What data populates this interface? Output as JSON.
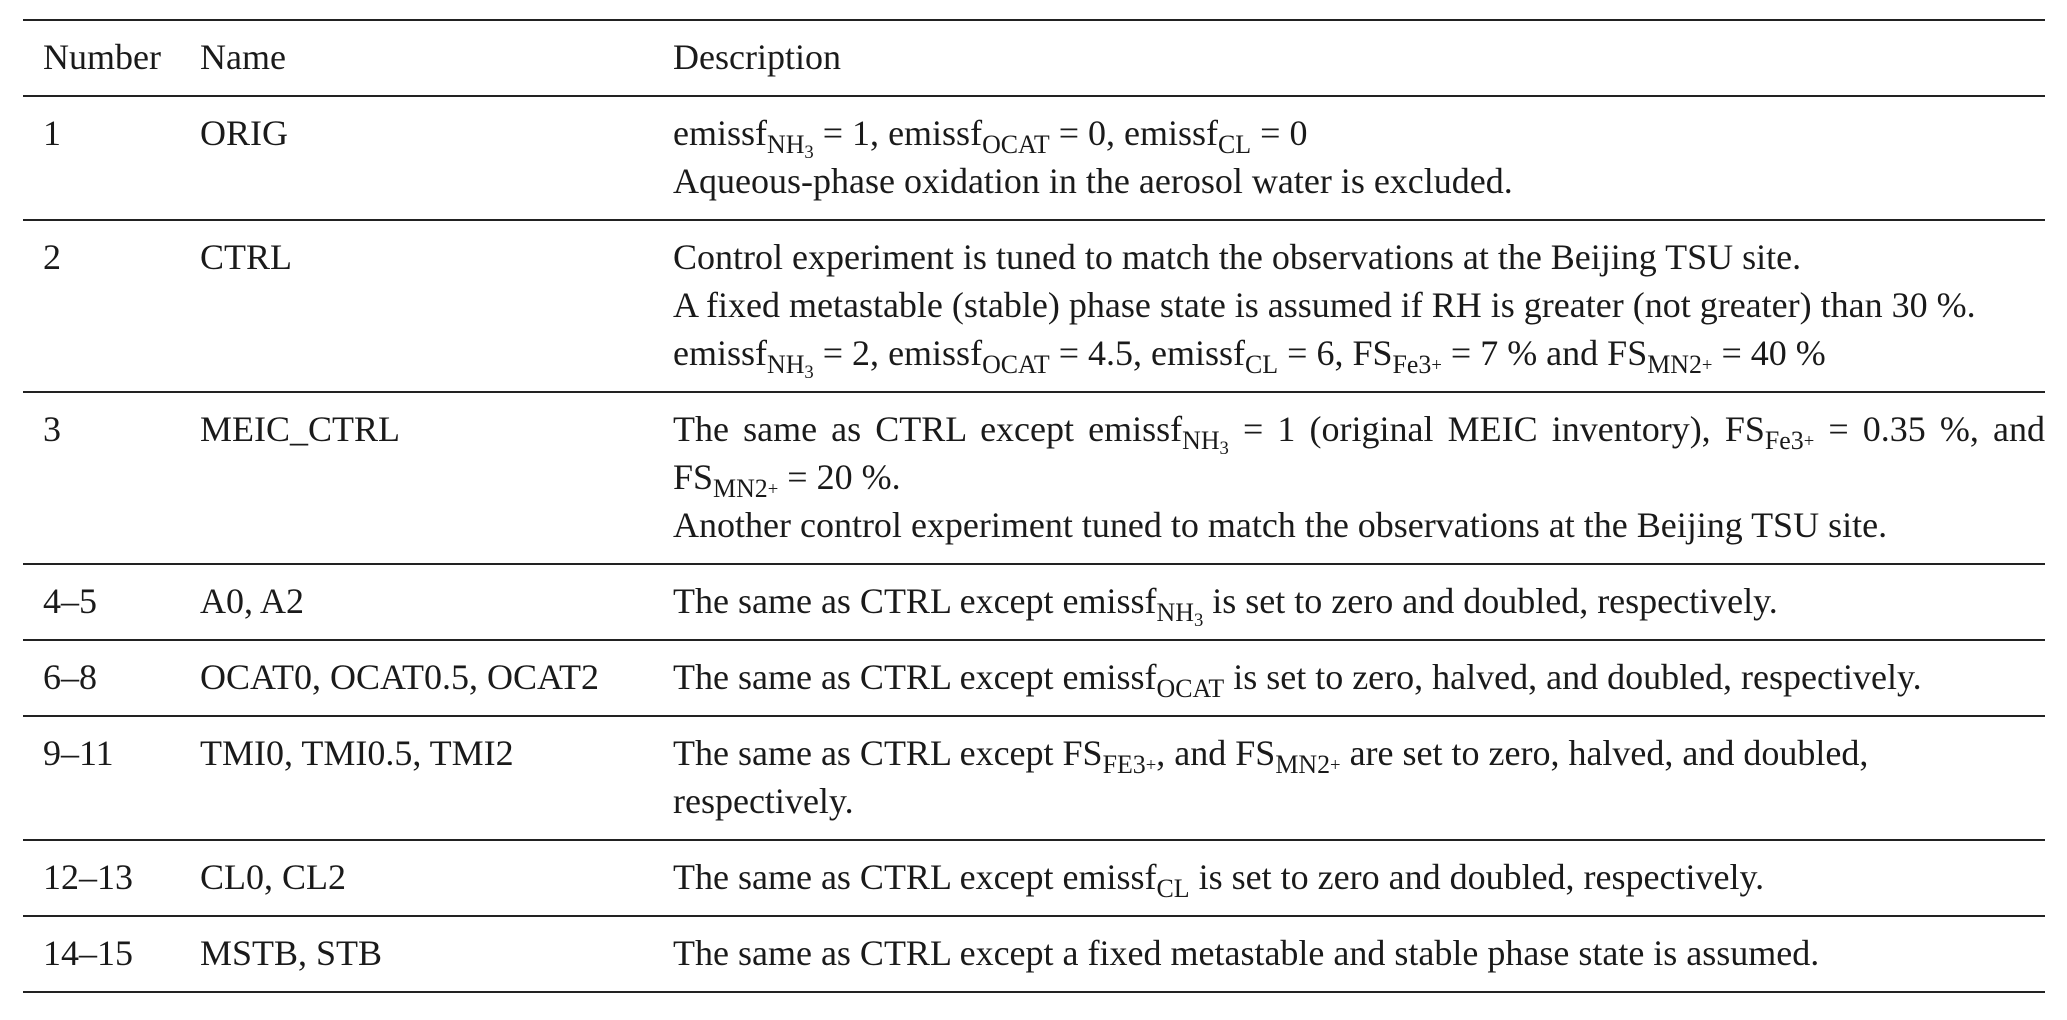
{
  "table": {
    "headers": [
      "Number",
      "Name",
      "Description"
    ],
    "rows": [
      {
        "number": "1",
        "name": "ORIG",
        "desc": {
          "e_label": "emissf",
          "nh3_sub": "NH",
          "nh3_idx": "3",
          "nh3_val": " = 1, ",
          "ocat_sub": "OCAT",
          "ocat_val": " = 0, ",
          "cl_sub": "CL",
          "cl_val": " = 0",
          "line2": "Aqueous-phase oxidation in the aerosol water is excluded."
        }
      },
      {
        "number": "2",
        "name": "CTRL",
        "desc": {
          "line1": "Control experiment is tuned to match the observations at the Beijing TSU site.",
          "line2": "A fixed metastable (stable) phase state is assumed if RH is greater (not greater) than 30 %.",
          "e_label": "emissf",
          "fs_label": "FS",
          "nh3_sub": "NH",
          "nh3_idx": "3",
          "nh3_val": " = 2, ",
          "ocat_sub": "OCAT",
          "ocat_val": " = 4.5, ",
          "cl_sub": "CL",
          "cl_val": " = 6, ",
          "fe_sub": "Fe3",
          "fe_sup": "+",
          "fe_val": " = 7 % and ",
          "mn_sub": "MN2",
          "mn_sup": "+",
          "mn_val": " = 40 %"
        }
      },
      {
        "number": "3",
        "name": "MEIC_CTRL",
        "desc": {
          "pre": "The same as CTRL except ",
          "e_label": "emissf",
          "fs_label": "FS",
          "nh3_sub": "NH",
          "nh3_idx": "3",
          "nh3_val": " = 1 (original MEIC inventory), ",
          "fe_sub": "Fe3",
          "fe_sup": "+",
          "fe_val": " = 0.35 %, and ",
          "mn_sub": "MN2",
          "mn_sup": "+",
          "mn_val": " = 20 %.",
          "line2": "Another control experiment tuned to match the observations at the Beijing TSU site."
        }
      },
      {
        "number": "4–5",
        "name": "A0, A2",
        "desc": {
          "pre": "The same as CTRL except ",
          "e_label": "emissf",
          "nh3_sub": "NH",
          "nh3_idx": "3",
          "post": " is set to zero and doubled, respectively."
        }
      },
      {
        "number": "6–8",
        "name": "OCAT0, OCAT0.5, OCAT2",
        "desc": {
          "pre": "The same as CTRL except ",
          "e_label": "emissf",
          "ocat_sub": "OCAT",
          "post": " is set to zero, halved, and doubled, respectively."
        }
      },
      {
        "number": "9–11",
        "name": "TMI0, TMI0.5, TMI2",
        "desc": {
          "pre": "The same as CTRL except ",
          "fs_label": "FS",
          "fe_sub": "FE3",
          "fe_sup": "+",
          "mid": ", and ",
          "mn_sub": "MN2",
          "mn_sup": "+",
          "post": " are set to zero, halved, and doubled, respectively."
        }
      },
      {
        "number": "12–13",
        "name": "CL0, CL2",
        "desc": {
          "pre": "The same as CTRL except ",
          "e_label": "emissf",
          "cl_sub": "CL",
          "post": " is set to zero and doubled, respectively."
        }
      },
      {
        "number": "14–15",
        "name": "MSTB, STB",
        "desc": {
          "text": "The same as CTRL except a fixed metastable and stable phase state is assumed."
        }
      }
    ]
  }
}
